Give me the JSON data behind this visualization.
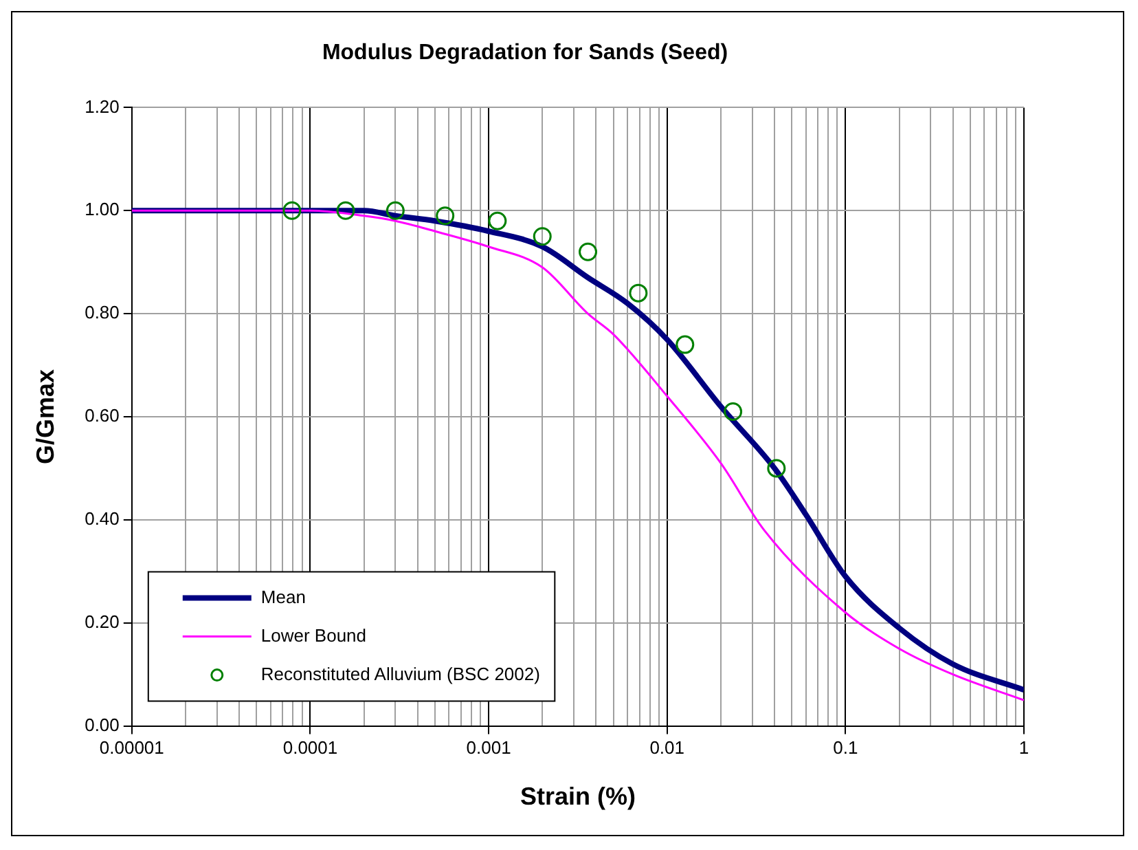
{
  "chart_data": {
    "type": "line",
    "title": "Modulus Degradation for Sands (Seed)",
    "xlabel": "Strain (%)",
    "ylabel": "G/Gmax",
    "log": "x",
    "grid": true,
    "legend": "bottom left",
    "marker": "none",
    "line_style": "solid",
    "xlim": [
      1e-05,
      1
    ],
    "ylim": [
      0,
      1.2
    ],
    "xticks": [
      {
        "value": 1e-05,
        "label": "0.00001"
      },
      {
        "value": 2e-05,
        "label": null
      },
      {
        "value": 3e-05,
        "label": null
      },
      {
        "value": 4e-05,
        "label": null
      },
      {
        "value": 5e-05,
        "label": null
      },
      {
        "value": 6e-05,
        "label": null
      },
      {
        "value": 7e-05,
        "label": null
      },
      {
        "value": 8e-05,
        "label": null
      },
      {
        "value": 9e-05,
        "label": null
      },
      {
        "value": 0.0001,
        "label": "0.0001"
      },
      {
        "value": 0.0002,
        "label": null
      },
      {
        "value": 0.0003,
        "label": null
      },
      {
        "value": 0.0004,
        "label": null
      },
      {
        "value": 0.0005,
        "label": null
      },
      {
        "value": 0.0006,
        "label": null
      },
      {
        "value": 0.0007,
        "label": null
      },
      {
        "value": 0.0008,
        "label": null
      },
      {
        "value": 0.0009,
        "label": null
      },
      {
        "value": 0.001,
        "label": "0.001"
      },
      {
        "value": 0.002,
        "label": null
      },
      {
        "value": 0.003,
        "label": null
      },
      {
        "value": 0.004,
        "label": null
      },
      {
        "value": 0.005,
        "label": null
      },
      {
        "value": 0.006,
        "label": null
      },
      {
        "value": 0.007,
        "label": null
      },
      {
        "value": 0.008,
        "label": null
      },
      {
        "value": 0.009,
        "label": null
      },
      {
        "value": 0.01,
        "label": "0.01"
      },
      {
        "value": 0.02,
        "label": null
      },
      {
        "value": 0.03,
        "label": null
      },
      {
        "value": 0.04,
        "label": null
      },
      {
        "value": 0.05,
        "label": null
      },
      {
        "value": 0.06,
        "label": null
      },
      {
        "value": 0.07,
        "label": null
      },
      {
        "value": 0.08,
        "label": null
      },
      {
        "value": 0.09,
        "label": null
      },
      {
        "value": 0.1,
        "label": "0.1"
      },
      {
        "value": 0.2,
        "label": null
      },
      {
        "value": 0.3,
        "label": null
      },
      {
        "value": 0.4,
        "label": null
      },
      {
        "value": 0.5,
        "label": null
      },
      {
        "value": 0.6,
        "label": null
      },
      {
        "value": 0.7,
        "label": null
      },
      {
        "value": 0.8,
        "label": null
      },
      {
        "value": 0.9,
        "label": null
      },
      {
        "value": 1,
        "label": "1"
      }
    ],
    "yticks": [
      {
        "value": 0,
        "label": "0.00"
      },
      {
        "value": 0.2,
        "label": "0.20"
      },
      {
        "value": 0.4,
        "label": "0.40"
      },
      {
        "value": 0.6,
        "label": "0.60"
      },
      {
        "value": 0.8,
        "label": "0.80"
      },
      {
        "value": 1,
        "label": "1.00"
      },
      {
        "value": 1.2,
        "label": "1.20"
      }
    ],
    "series": [
      {
        "name": "Mean",
        "type": "line",
        "color": "#000080",
        "x": [
          1e-05,
          0.0001,
          0.0002,
          0.0003,
          0.0005,
          0.001,
          0.002,
          0.0036,
          0.006,
          0.01,
          0.02,
          0.04,
          0.06,
          0.1,
          0.2,
          0.4,
          1
        ],
        "values": [
          1,
          1,
          1,
          0.99,
          0.98,
          0.96,
          0.93,
          0.87,
          0.82,
          0.75,
          0.62,
          0.5,
          0.41,
          0.29,
          0.19,
          0.12,
          0.07
        ]
      },
      {
        "name": "Lower Bound",
        "type": "line",
        "color": "#ff00ff",
        "x": [
          1e-05,
          0.0001,
          0.0002,
          0.0003,
          0.0005,
          0.001,
          0.002,
          0.0036,
          0.005,
          0.01,
          0.02,
          0.035,
          0.1,
          0.2,
          0.4,
          1
        ],
        "values": [
          1,
          1,
          0.99,
          0.98,
          0.96,
          0.93,
          0.89,
          0.8,
          0.76,
          0.64,
          0.51,
          0.38,
          0.22,
          0.15,
          0.1,
          0.05
        ]
      },
      {
        "name": "Reconstituted Alluvium (BSC 2002)",
        "type": "scatter",
        "marker": "circle",
        "color": "#008000",
        "x": [
          7.9e-05,
          0.000158,
          0.0003,
          0.00057,
          0.00112,
          0.002,
          0.0036,
          0.0069,
          0.0126,
          0.0234,
          0.041
        ],
        "values": [
          1,
          1,
          1,
          0.99,
          0.98,
          0.95,
          0.92,
          0.84,
          0.74,
          0.61,
          0.5
        ]
      }
    ]
  }
}
